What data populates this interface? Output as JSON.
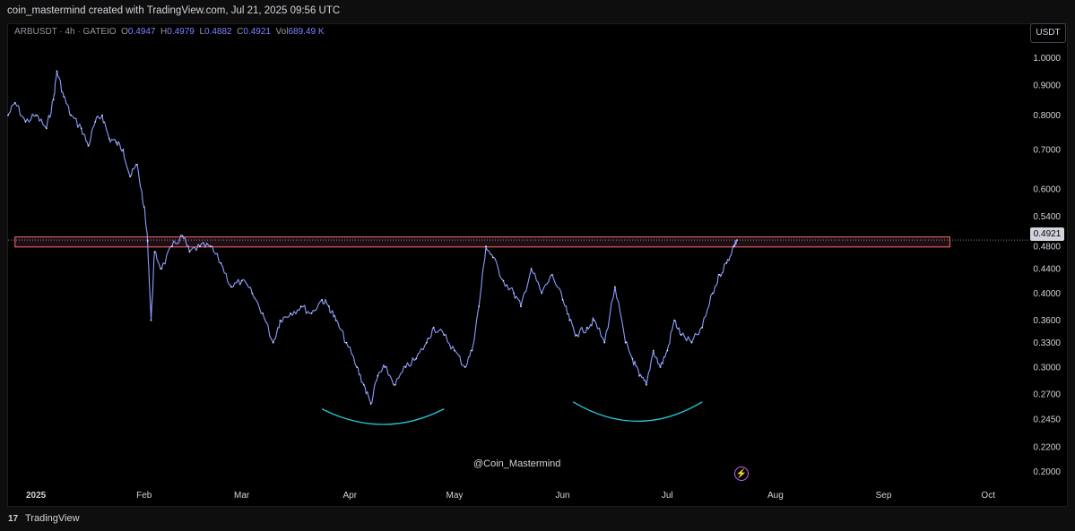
{
  "header": {
    "caption": "coin_mastermind created with TradingView.com, Jul 21, 2025 09:56 UTC"
  },
  "legend": {
    "symbol": "ARBUSDT · 4h · GATEIO",
    "o_label": "O",
    "o_value": "0.4947",
    "h_label": "H",
    "h_value": "0.4979",
    "l_label": "L",
    "l_value": "0.4882",
    "c_label": "C",
    "c_value": "0.4921",
    "vol_label": "Vol",
    "vol_value": "689.49 K"
  },
  "currency_button": "USDT",
  "current_price_label": "0.4921",
  "watermark": "@Coin_Mastermind",
  "footer": {
    "logo": "17",
    "brand": "TradingView"
  },
  "colors": {
    "line": "#8c9eff",
    "zone_border": "#ff6b6b",
    "zone_fill": "#5a2a3a",
    "arc": "#26c6da",
    "bolt": "#c264ff",
    "price_line": "#d1d4dc"
  },
  "icons": {
    "bolt": "lightning-bolt-icon"
  },
  "chart_data": {
    "type": "line",
    "title": "ARBUSDT · 4h · GATEIO",
    "xlabel": "",
    "ylabel": "",
    "y_scale": "log",
    "ylim": [
      0.19,
      1.06
    ],
    "y_ticks": [
      "1.0000",
      "0.9000",
      "0.8000",
      "0.7000",
      "0.6000",
      "0.5400",
      "0.4800",
      "0.4400",
      "0.4000",
      "0.3600",
      "0.3300",
      "0.3000",
      "0.2700",
      "0.2450",
      "0.2200",
      "0.2000"
    ],
    "x_ticks": [
      "2025",
      "Feb",
      "Mar",
      "Apr",
      "May",
      "Jun",
      "Jul",
      "Aug",
      "Sep",
      "Oct"
    ],
    "x_tick_dates": [
      "2025-01-01",
      "2025-02-01",
      "2025-03-01",
      "2025-04-01",
      "2025-05-01",
      "2025-06-01",
      "2025-07-01",
      "2025-08-01",
      "2025-09-01",
      "2025-10-01"
    ],
    "x_range": [
      "2024-12-24",
      "2025-10-12"
    ],
    "series": [
      {
        "values": [
          [
            "2024-12-24",
            0.8
          ],
          [
            "2024-12-26",
            0.84
          ],
          [
            "2024-12-29",
            0.78
          ],
          [
            "2025-01-01",
            0.8
          ],
          [
            "2025-01-04",
            0.76
          ],
          [
            "2025-01-06",
            0.85
          ],
          [
            "2025-01-07",
            0.95
          ],
          [
            "2025-01-09",
            0.86
          ],
          [
            "2025-01-11",
            0.8
          ],
          [
            "2025-01-14",
            0.76
          ],
          [
            "2025-01-16",
            0.71
          ],
          [
            "2025-01-18",
            0.78
          ],
          [
            "2025-01-20",
            0.8
          ],
          [
            "2025-01-22",
            0.73
          ],
          [
            "2025-01-24",
            0.72
          ],
          [
            "2025-01-26",
            0.7
          ],
          [
            "2025-01-28",
            0.63
          ],
          [
            "2025-01-30",
            0.66
          ],
          [
            "2025-02-01",
            0.56
          ],
          [
            "2025-02-02",
            0.49
          ],
          [
            "2025-02-03",
            0.36
          ],
          [
            "2025-02-04",
            0.47
          ],
          [
            "2025-02-06",
            0.44
          ],
          [
            "2025-02-09",
            0.48
          ],
          [
            "2025-02-12",
            0.5
          ],
          [
            "2025-02-14",
            0.47
          ],
          [
            "2025-02-17",
            0.48
          ],
          [
            "2025-02-20",
            0.48
          ],
          [
            "2025-02-23",
            0.45
          ],
          [
            "2025-02-26",
            0.41
          ],
          [
            "2025-03-01",
            0.42
          ],
          [
            "2025-03-04",
            0.4
          ],
          [
            "2025-03-07",
            0.37
          ],
          [
            "2025-03-10",
            0.33
          ],
          [
            "2025-03-12",
            0.36
          ],
          [
            "2025-03-15",
            0.37
          ],
          [
            "2025-03-18",
            0.38
          ],
          [
            "2025-03-21",
            0.37
          ],
          [
            "2025-03-24",
            0.39
          ],
          [
            "2025-03-26",
            0.38
          ],
          [
            "2025-03-28",
            0.36
          ],
          [
            "2025-03-31",
            0.33
          ],
          [
            "2025-04-03",
            0.3
          ],
          [
            "2025-04-05",
            0.28
          ],
          [
            "2025-04-07",
            0.26
          ],
          [
            "2025-04-09",
            0.29
          ],
          [
            "2025-04-11",
            0.3
          ],
          [
            "2025-04-14",
            0.28
          ],
          [
            "2025-04-17",
            0.3
          ],
          [
            "2025-04-20",
            0.31
          ],
          [
            "2025-04-23",
            0.33
          ],
          [
            "2025-04-25",
            0.35
          ],
          [
            "2025-04-28",
            0.34
          ],
          [
            "2025-05-01",
            0.32
          ],
          [
            "2025-05-04",
            0.3
          ],
          [
            "2025-05-06",
            0.32
          ],
          [
            "2025-05-08",
            0.38
          ],
          [
            "2025-05-10",
            0.48
          ],
          [
            "2025-05-12",
            0.46
          ],
          [
            "2025-05-15",
            0.42
          ],
          [
            "2025-05-18",
            0.4
          ],
          [
            "2025-05-20",
            0.38
          ],
          [
            "2025-05-23",
            0.44
          ],
          [
            "2025-05-26",
            0.4
          ],
          [
            "2025-05-29",
            0.43
          ],
          [
            "2025-06-01",
            0.39
          ],
          [
            "2025-06-03",
            0.36
          ],
          [
            "2025-06-05",
            0.34
          ],
          [
            "2025-06-08",
            0.35
          ],
          [
            "2025-06-10",
            0.36
          ],
          [
            "2025-06-13",
            0.33
          ],
          [
            "2025-06-16",
            0.41
          ],
          [
            "2025-06-19",
            0.33
          ],
          [
            "2025-06-21",
            0.31
          ],
          [
            "2025-06-23",
            0.29
          ],
          [
            "2025-06-25",
            0.28
          ],
          [
            "2025-06-27",
            0.32
          ],
          [
            "2025-06-29",
            0.3
          ],
          [
            "2025-07-01",
            0.32
          ],
          [
            "2025-07-03",
            0.36
          ],
          [
            "2025-07-05",
            0.34
          ],
          [
            "2025-07-08",
            0.33
          ],
          [
            "2025-07-11",
            0.35
          ],
          [
            "2025-07-14",
            0.4
          ],
          [
            "2025-07-16",
            0.43
          ],
          [
            "2025-07-18",
            0.45
          ],
          [
            "2025-07-20",
            0.48
          ],
          [
            "2025-07-21",
            0.4921
          ]
        ]
      }
    ],
    "resistance_zone": {
      "y_low": 0.479,
      "y_high": 0.498,
      "x_start": "2024-12-26",
      "x_end": "2025-09-20"
    },
    "current_price": 0.4921,
    "arcs": [
      {
        "x_start": "2025-03-24",
        "x_end": "2025-04-28",
        "y_ends": 0.255,
        "y_bottom": 0.24
      },
      {
        "x_start": "2025-06-04",
        "x_end": "2025-07-11",
        "y_ends": 0.262,
        "y_bottom": 0.243
      }
    ]
  }
}
